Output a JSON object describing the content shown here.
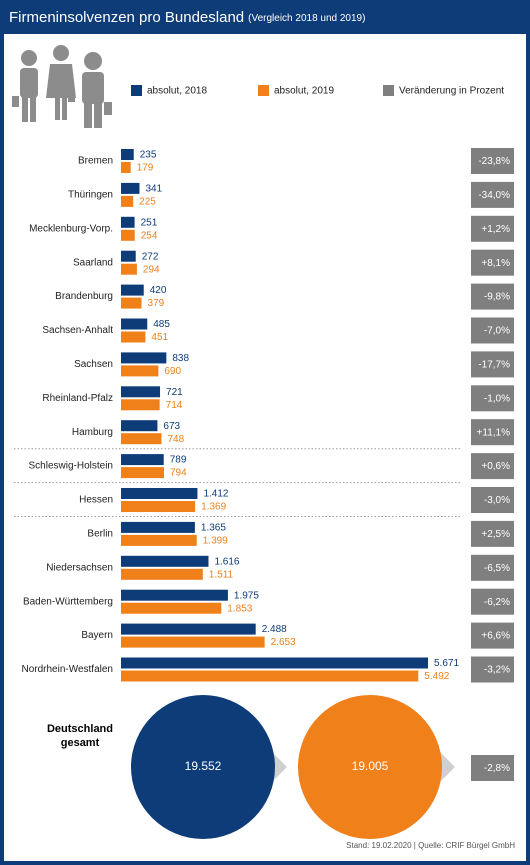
{
  "chart_data": {
    "type": "bar",
    "orientation": "horizontal",
    "title": "Firmeninsolvenzen pro Bundesland",
    "subtitle": "(Vergleich 2018 und 2019)",
    "categories": [
      "Bremen",
      "Thüringen",
      "Mecklenburg-Vorp.",
      "Saarland",
      "Brandenburg",
      "Sachsen-Anhalt",
      "Sachsen",
      "Rheinland-Pfalz",
      "Hamburg",
      "Schleswig-Holstein",
      "Hessen",
      "Berlin",
      "Niedersachsen",
      "Baden-Württemberg",
      "Bayern",
      "Nordrhein-Westfalen"
    ],
    "series": [
      {
        "name": "absolut, 2018",
        "color": "#0d3c78",
        "values": [
          235,
          341,
          251,
          272,
          420,
          485,
          838,
          721,
          673,
          789,
          1412,
          1365,
          1616,
          1975,
          2488,
          5671
        ],
        "value_labels": [
          "235",
          "341",
          "251",
          "272",
          "420",
          "485",
          "838",
          "721",
          "673",
          "789",
          "1.412",
          "1.365",
          "1.616",
          "1.975",
          "2.488",
          "5.671"
        ]
      },
      {
        "name": "absolut, 2019",
        "color": "#f0801a",
        "values": [
          179,
          225,
          254,
          294,
          379,
          451,
          690,
          714,
          748,
          794,
          1369,
          1399,
          1511,
          1853,
          2653,
          5492
        ],
        "value_labels": [
          "179",
          "225",
          "254",
          "294",
          "379",
          "451",
          "690",
          "714",
          "748",
          "794",
          "1.369",
          "1.399",
          "1.511",
          "1.853",
          "2.653",
          "5.492"
        ]
      }
    ],
    "change": {
      "name": "Veränderung in Prozent",
      "color": "#7f7f7f",
      "values": [
        -23.8,
        -34.0,
        1.2,
        8.1,
        -9.8,
        -7.0,
        -17.7,
        -1.0,
        11.1,
        0.6,
        -3.0,
        2.5,
        -6.5,
        -6.2,
        6.6,
        -3.2
      ],
      "value_labels": [
        "-23,8%",
        "-34,0%",
        "+1,2%",
        "+8,1%",
        "-9,8%",
        "-7,0%",
        "-17,7%",
        "-1,0%",
        "+11,1%",
        "+0,6%",
        "-3,0%",
        "+2,5%",
        "-6,5%",
        "-6,2%",
        "+6,6%",
        "-3,2%"
      ]
    },
    "total": {
      "label": "Deutschland gesamt",
      "values": [
        19552,
        19005
      ],
      "value_labels": [
        "19.552",
        "19.005"
      ],
      "change": -2.8,
      "change_label": "-2,8%"
    },
    "source": "Stand: 19.02.2020 | Quelle: CRIF Bürgel GmbH"
  }
}
